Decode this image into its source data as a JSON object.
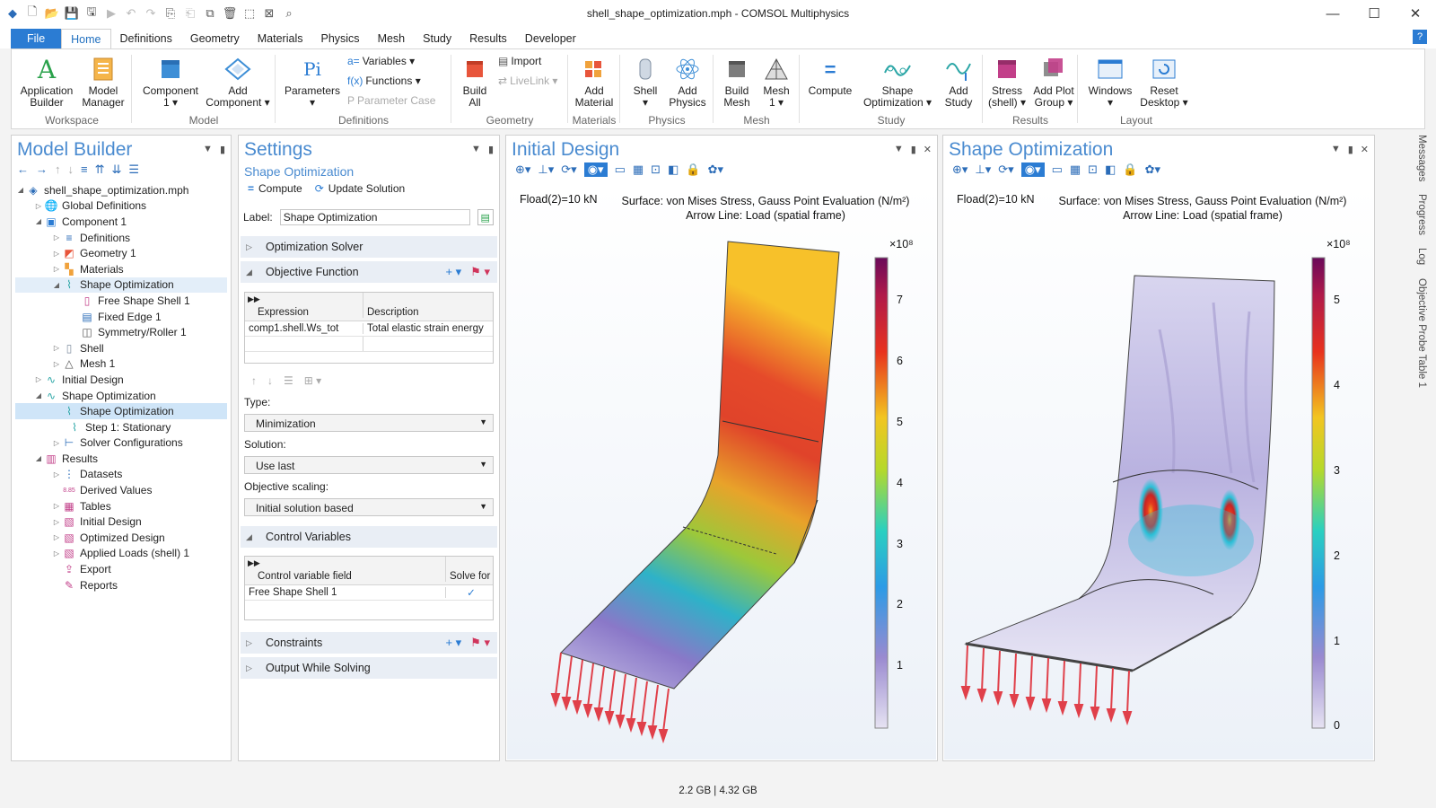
{
  "window": {
    "title": "shell_shape_optimization.mph - COMSOL Multiphysics",
    "controls": [
      "minimize-icon",
      "maximize-icon",
      "close-icon"
    ]
  },
  "ribbon_tabs": [
    "File",
    "Home",
    "Definitions",
    "Geometry",
    "Materials",
    "Physics",
    "Mesh",
    "Study",
    "Results",
    "Developer"
  ],
  "active_tab": "Home",
  "ribbon": {
    "workspace": {
      "label": "Workspace",
      "app_builder": "Application\nBuilder",
      "model_manager": "Model\nManager"
    },
    "model": {
      "label": "Model",
      "component": "Component\n1 ▾",
      "add_component": "Add\nComponent ▾"
    },
    "definitions": {
      "label": "Definitions",
      "parameters": "Parameters\n▾",
      "variables": "Variables ▾",
      "functions": "Functions ▾",
      "parameter_case": "Parameter Case"
    },
    "geometry": {
      "label": "Geometry",
      "build_all": "Build\nAll",
      "import": "Import",
      "livelink": "LiveLink ▾"
    },
    "materials": {
      "label": "Materials",
      "add_material": "Add\nMaterial"
    },
    "physics": {
      "label": "Physics",
      "shell": "Shell\n▾",
      "add_physics": "Add\nPhysics"
    },
    "mesh": {
      "label": "Mesh",
      "build_mesh": "Build\nMesh",
      "mesh1": "Mesh\n1 ▾"
    },
    "study": {
      "label": "Study",
      "compute": "Compute",
      "shape_opt": "Shape\nOptimization ▾",
      "add_study": "Add\nStudy"
    },
    "results": {
      "label": "Results",
      "stress": "Stress\n(shell) ▾",
      "add_plot_group": "Add Plot\nGroup ▾"
    },
    "layout": {
      "label": "Layout",
      "windows": "Windows\n▾",
      "reset_desktop": "Reset\nDesktop ▾"
    }
  },
  "model_builder": {
    "title": "Model Builder",
    "tree": [
      {
        "label": "shell_shape_optimization.mph",
        "depth": 0,
        "expanded": true,
        "icon": "model-icon"
      },
      {
        "label": "Global Definitions",
        "depth": 1,
        "expanded": false,
        "icon": "globe-icon"
      },
      {
        "label": "Component 1",
        "depth": 1,
        "expanded": true,
        "icon": "component-icon"
      },
      {
        "label": "Definitions",
        "depth": 2,
        "expanded": false,
        "icon": "definitions-icon"
      },
      {
        "label": "Geometry 1",
        "depth": 2,
        "expanded": false,
        "icon": "geometry-icon"
      },
      {
        "label": "Materials",
        "depth": 2,
        "expanded": false,
        "icon": "materials-icon"
      },
      {
        "label": "Shape Optimization",
        "depth": 2,
        "expanded": true,
        "icon": "shape-opt-icon",
        "highlight": true
      },
      {
        "label": "Free Shape Shell 1",
        "depth": 3,
        "icon": "free-shape-icon"
      },
      {
        "label": "Fixed Edge 1",
        "depth": 3,
        "icon": "fixed-edge-icon"
      },
      {
        "label": "Symmetry/Roller 1",
        "depth": 3,
        "icon": "symmetry-icon"
      },
      {
        "label": "Shell",
        "depth": 2,
        "expanded": false,
        "icon": "shell-icon"
      },
      {
        "label": "Mesh 1",
        "depth": 2,
        "expanded": false,
        "icon": "mesh-icon"
      },
      {
        "label": "Initial Design",
        "depth": 1,
        "expanded": false,
        "icon": "study-icon"
      },
      {
        "label": "Shape Optimization",
        "depth": 1,
        "expanded": true,
        "icon": "study-icon"
      },
      {
        "label": "Shape Optimization",
        "depth": 2,
        "icon": "shape-opt-icon",
        "selected": true
      },
      {
        "label": "Step 1: Stationary",
        "depth": 2,
        "icon": "step-icon",
        "indent_extra": true
      },
      {
        "label": "Solver Configurations",
        "depth": 2,
        "expanded": false,
        "icon": "solver-icon"
      },
      {
        "label": "Results",
        "depth": 1,
        "expanded": true,
        "icon": "results-icon"
      },
      {
        "label": "Datasets",
        "depth": 2,
        "expanded": false,
        "icon": "datasets-icon"
      },
      {
        "label": "Derived Values",
        "depth": 2,
        "icon": "derived-icon"
      },
      {
        "label": "Tables",
        "depth": 2,
        "expanded": false,
        "icon": "tables-icon"
      },
      {
        "label": "Initial Design",
        "depth": 2,
        "expanded": false,
        "icon": "plot-icon"
      },
      {
        "label": "Optimized Design",
        "depth": 2,
        "expanded": false,
        "icon": "plot-icon"
      },
      {
        "label": "Applied Loads (shell) 1",
        "depth": 2,
        "expanded": false,
        "icon": "plot-icon"
      },
      {
        "label": "Export",
        "depth": 2,
        "icon": "export-icon"
      },
      {
        "label": "Reports",
        "depth": 2,
        "icon": "reports-icon"
      }
    ]
  },
  "settings": {
    "title": "Settings",
    "subtitle": "Shape Optimization",
    "compute": "Compute",
    "update_solution": "Update Solution",
    "label_caption": "Label:",
    "label_value": "Shape Optimization",
    "sections": {
      "optimization_solver": "Optimization Solver",
      "objective_function": "Objective Function",
      "control_variables": "Control Variables",
      "constraints": "Constraints",
      "output_while_solving": "Output While Solving"
    },
    "objective_table": {
      "headers": [
        "Expression",
        "Description"
      ],
      "rows": [
        [
          "comp1.shell.Ws_tot",
          "Total elastic strain energy"
        ]
      ]
    },
    "type_label": "Type:",
    "type_value": "Minimization",
    "solution_label": "Solution:",
    "solution_value": "Use last",
    "scaling_label": "Objective scaling:",
    "scaling_value": "Initial solution based",
    "control_table": {
      "headers": [
        "Control variable field",
        "Solve for"
      ],
      "rows": [
        [
          "Free Shape Shell 1",
          "✓"
        ]
      ]
    }
  },
  "initial_design": {
    "title": "Initial Design",
    "param": "Fload(2)=10 kN",
    "caption1": "Surface: von Mises Stress, Gauss Point Evaluation (N/m²)",
    "caption2": "Arrow Line: Load (spatial frame)",
    "exponent": "×10⁸",
    "ticks": [
      "7",
      "6",
      "5",
      "4",
      "3",
      "2",
      "1"
    ]
  },
  "shape_optimization_plot": {
    "title": "Shape Optimization",
    "param": "Fload(2)=10 kN",
    "caption1": "Surface: von Mises Stress, Gauss Point Evaluation (N/m²)",
    "caption2": "Arrow Line: Load (spatial frame)",
    "exponent": "×10⁸",
    "ticks": [
      "5",
      "4",
      "3",
      "2",
      "1",
      "0"
    ]
  },
  "side_tabs": [
    "Messages",
    "Progress",
    "Log",
    "Objective Probe Table 1"
  ],
  "status": "2.2 GB | 4.32 GB"
}
